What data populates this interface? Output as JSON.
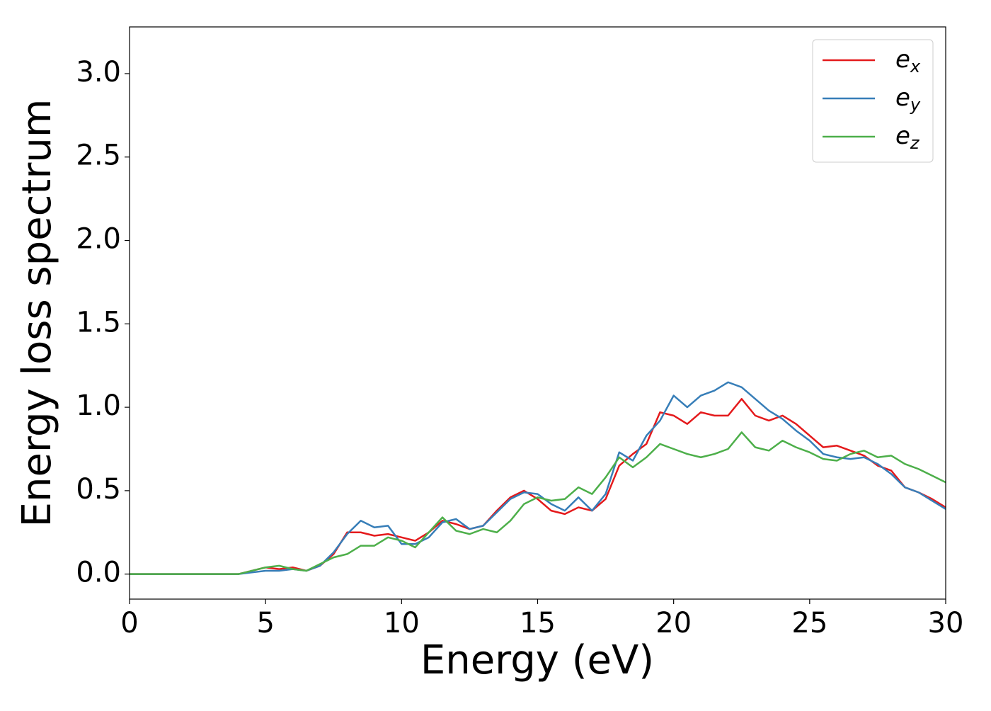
{
  "chart_data": {
    "type": "line",
    "xlabel": "Energy (eV)",
    "ylabel": "Energy loss spectrum",
    "x": [
      0,
      0.5,
      1,
      1.5,
      2,
      2.5,
      3,
      3.5,
      4,
      4.5,
      5,
      5.5,
      6,
      6.5,
      7,
      7.5,
      8,
      8.5,
      9,
      9.5,
      10,
      10.5,
      11,
      11.5,
      12,
      12.5,
      13,
      13.5,
      14,
      14.5,
      15,
      15.5,
      16,
      16.5,
      17,
      17.5,
      18,
      18.5,
      19,
      19.5,
      20,
      20.5,
      21,
      21.5,
      22,
      22.5,
      23,
      23.5,
      24,
      24.5,
      25,
      25.5,
      26,
      26.5,
      27,
      27.5,
      28,
      28.5,
      29,
      29.5,
      30
    ],
    "series": [
      {
        "name": "ex",
        "color": "#e41a1c",
        "values": [
          0,
          0,
          0,
          0,
          0,
          0,
          0,
          0,
          0,
          0.02,
          0.04,
          0.03,
          0.04,
          0.02,
          0.05,
          0.12,
          0.25,
          0.25,
          0.23,
          0.24,
          0.22,
          0.2,
          0.25,
          0.32,
          0.3,
          0.27,
          0.29,
          0.38,
          0.46,
          0.5,
          0.45,
          0.38,
          0.36,
          0.4,
          0.38,
          0.45,
          0.65,
          0.72,
          0.78,
          0.97,
          0.95,
          0.9,
          0.97,
          0.95,
          0.95,
          1.05,
          0.95,
          0.92,
          0.95,
          0.9,
          0.83,
          0.76,
          0.77,
          0.74,
          0.71,
          0.65,
          0.62,
          0.52,
          0.49,
          0.45,
          0.4
        ]
      },
      {
        "name": "ey",
        "color": "#377eb8",
        "values": [
          0,
          0,
          0,
          0,
          0,
          0,
          0,
          0,
          0,
          0.01,
          0.02,
          0.02,
          0.03,
          0.02,
          0.05,
          0.13,
          0.24,
          0.32,
          0.28,
          0.29,
          0.18,
          0.18,
          0.22,
          0.31,
          0.33,
          0.27,
          0.29,
          0.37,
          0.45,
          0.49,
          0.48,
          0.42,
          0.38,
          0.46,
          0.38,
          0.48,
          0.73,
          0.68,
          0.83,
          0.92,
          1.07,
          1.0,
          1.07,
          1.1,
          1.15,
          1.12,
          1.05,
          0.98,
          0.93,
          0.86,
          0.8,
          0.72,
          0.7,
          0.69,
          0.7,
          0.66,
          0.6,
          0.52,
          0.49,
          0.44,
          0.39
        ]
      },
      {
        "name": "ez",
        "color": "#4daf4a",
        "values": [
          0,
          0,
          0,
          0,
          0,
          0,
          0,
          0,
          0,
          0.02,
          0.04,
          0.05,
          0.03,
          0.02,
          0.06,
          0.1,
          0.12,
          0.17,
          0.17,
          0.22,
          0.2,
          0.16,
          0.25,
          0.34,
          0.26,
          0.24,
          0.27,
          0.25,
          0.32,
          0.42,
          0.46,
          0.44,
          0.45,
          0.52,
          0.48,
          0.58,
          0.7,
          0.64,
          0.7,
          0.78,
          0.75,
          0.72,
          0.7,
          0.72,
          0.75,
          0.85,
          0.76,
          0.74,
          0.8,
          0.76,
          0.73,
          0.69,
          0.68,
          0.72,
          0.74,
          0.7,
          0.71,
          0.66,
          0.63,
          0.59,
          0.55
        ]
      }
    ],
    "xlim": [
      0,
      30
    ],
    "xticks": [
      0,
      5,
      10,
      15,
      20,
      25,
      30
    ],
    "ylim": [
      -0.15,
      3.28
    ],
    "yticks": [
      {
        "value": 0,
        "label": "0.0"
      },
      0.5,
      {
        "value": 1,
        "label": "1.0"
      },
      1.5,
      {
        "value": 2,
        "label": "2.0"
      },
      2.5,
      {
        "value": 3,
        "label": "3.0"
      }
    ],
    "legend": "upper right"
  }
}
